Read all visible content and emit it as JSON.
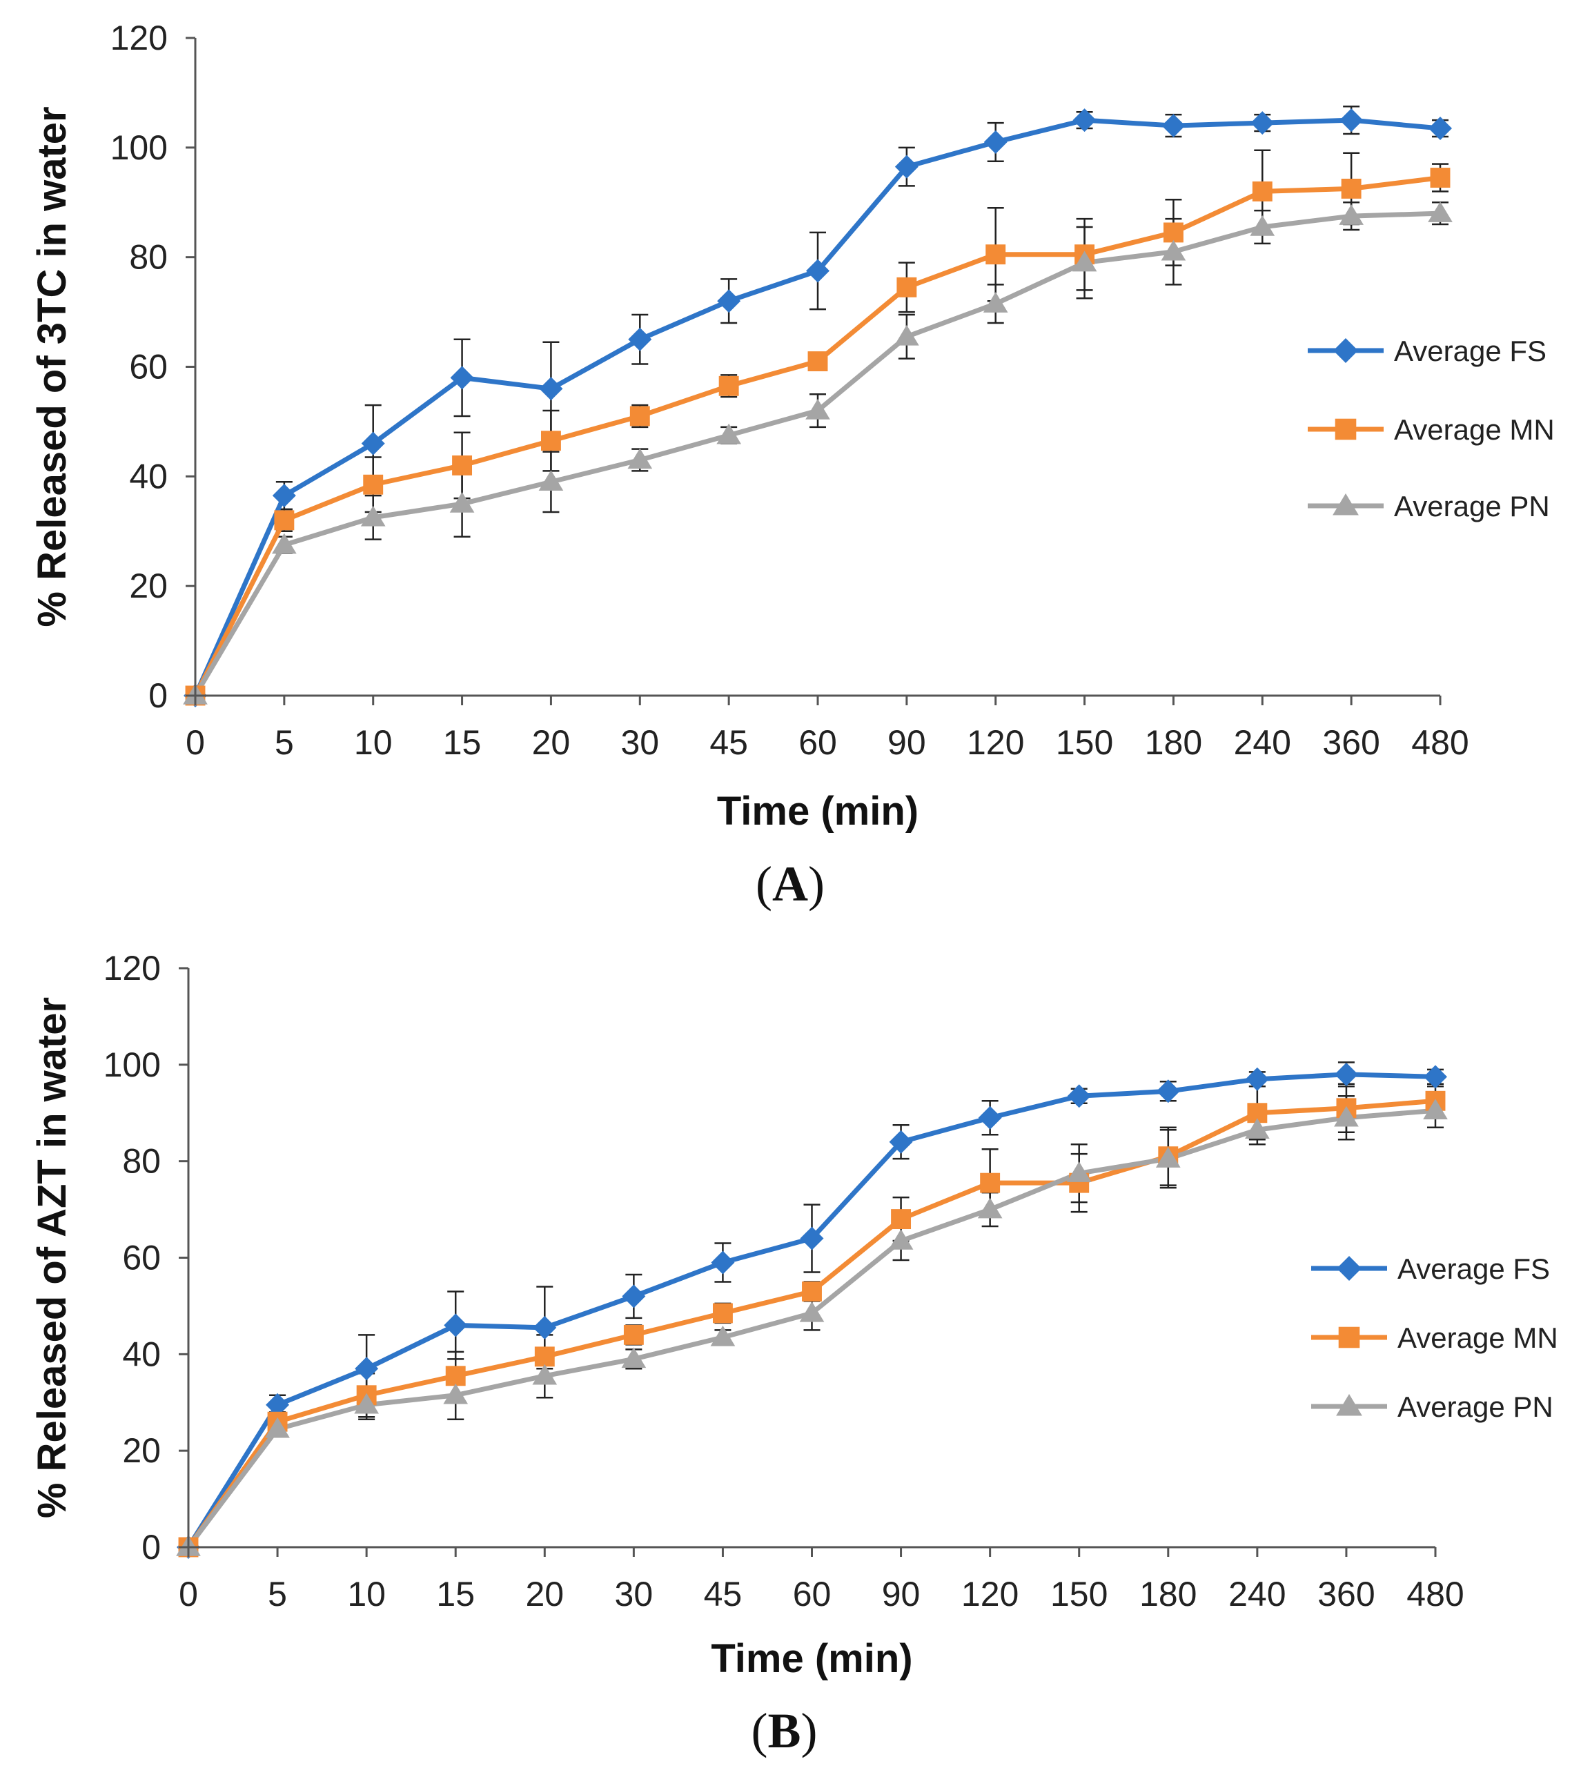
{
  "chart_data": [
    {
      "type": "line",
      "panel_label": "A",
      "categories": [
        "0",
        "5",
        "10",
        "15",
        "20",
        "30",
        "45",
        "60",
        "90",
        "120",
        "150",
        "180",
        "240",
        "360",
        "480"
      ],
      "xlabel": "Time (min)",
      "ylabel": "% Released of 3TC in water",
      "ylim": [
        0,
        120
      ],
      "yticks": [
        0,
        20,
        40,
        60,
        80,
        100,
        120
      ],
      "legend_position": "right",
      "series": [
        {
          "name": "Average FS",
          "color": "#2E75C8",
          "marker": "diamond",
          "values": [
            0,
            36.5,
            46,
            58,
            56,
            65,
            72,
            77.5,
            96.5,
            101,
            105,
            104,
            104.5,
            105,
            103.5
          ],
          "errors": [
            0,
            2.5,
            7,
            7,
            8.5,
            4.5,
            4,
            7,
            3.5,
            3.5,
            1.5,
            2,
            1.5,
            2.5,
            1.5
          ]
        },
        {
          "name": "Average MN",
          "color": "#F38B35",
          "marker": "square",
          "values": [
            0,
            32,
            38.5,
            42,
            46.5,
            51,
            56.5,
            61,
            74.5,
            80.5,
            80.5,
            84.5,
            92,
            92.5,
            94.5
          ],
          "errors": [
            0,
            2,
            5,
            6,
            5.5,
            2,
            2,
            1.5,
            4.5,
            8.5,
            6.5,
            6,
            7.5,
            6.5,
            2.5
          ]
        },
        {
          "name": "Average PN",
          "color": "#A5A5A5",
          "marker": "triangle",
          "values": [
            0,
            27.5,
            32.5,
            35,
            39,
            43,
            47.5,
            52,
            65.5,
            71.5,
            79,
            81,
            85.5,
            87.5,
            88
          ],
          "errors": [
            0,
            1.5,
            4,
            6,
            5.5,
            2,
            1.5,
            3,
            4,
            3.5,
            6.5,
            6,
            3,
            2.5,
            2
          ]
        }
      ]
    },
    {
      "type": "line",
      "panel_label": "B",
      "categories": [
        "0",
        "5",
        "10",
        "15",
        "20",
        "30",
        "45",
        "60",
        "90",
        "120",
        "150",
        "180",
        "240",
        "360",
        "480"
      ],
      "xlabel": "Time (min)",
      "ylabel": "% Released of AZT in water",
      "ylim": [
        0,
        120
      ],
      "yticks": [
        0,
        20,
        40,
        60,
        80,
        100,
        120
      ],
      "legend_position": "right",
      "series": [
        {
          "name": "Average FS",
          "color": "#2E75C8",
          "marker": "diamond",
          "values": [
            0,
            29.5,
            37,
            46,
            45.5,
            52,
            59,
            64,
            84,
            89,
            93.5,
            94.5,
            97,
            98,
            97.5
          ],
          "errors": [
            0,
            2,
            7,
            7,
            8.5,
            4.5,
            4,
            7,
            3.5,
            3.5,
            1.5,
            2,
            1.5,
            2.5,
            1.5
          ]
        },
        {
          "name": "Average MN",
          "color": "#F38B35",
          "marker": "square",
          "values": [
            0,
            26,
            31.5,
            35.5,
            39.5,
            44,
            48.5,
            53,
            68,
            75.5,
            75.5,
            81,
            90,
            91,
            92.5
          ],
          "errors": [
            0,
            2,
            4.5,
            5,
            4.5,
            2,
            2,
            2,
            4.5,
            7,
            6,
            6,
            5.5,
            5,
            3
          ]
        },
        {
          "name": "Average PN",
          "color": "#A5A5A5",
          "marker": "triangle",
          "values": [
            0,
            24.5,
            29.5,
            31.5,
            35.5,
            39,
            43.5,
            48.5,
            63.5,
            70,
            77.5,
            80.5,
            86.5,
            89,
            90.5
          ],
          "errors": [
            0,
            1.5,
            3,
            5,
            4.5,
            2,
            1.5,
            3.5,
            4,
            3.5,
            6,
            6,
            3,
            4.5,
            3.5
          ]
        }
      ]
    }
  ]
}
